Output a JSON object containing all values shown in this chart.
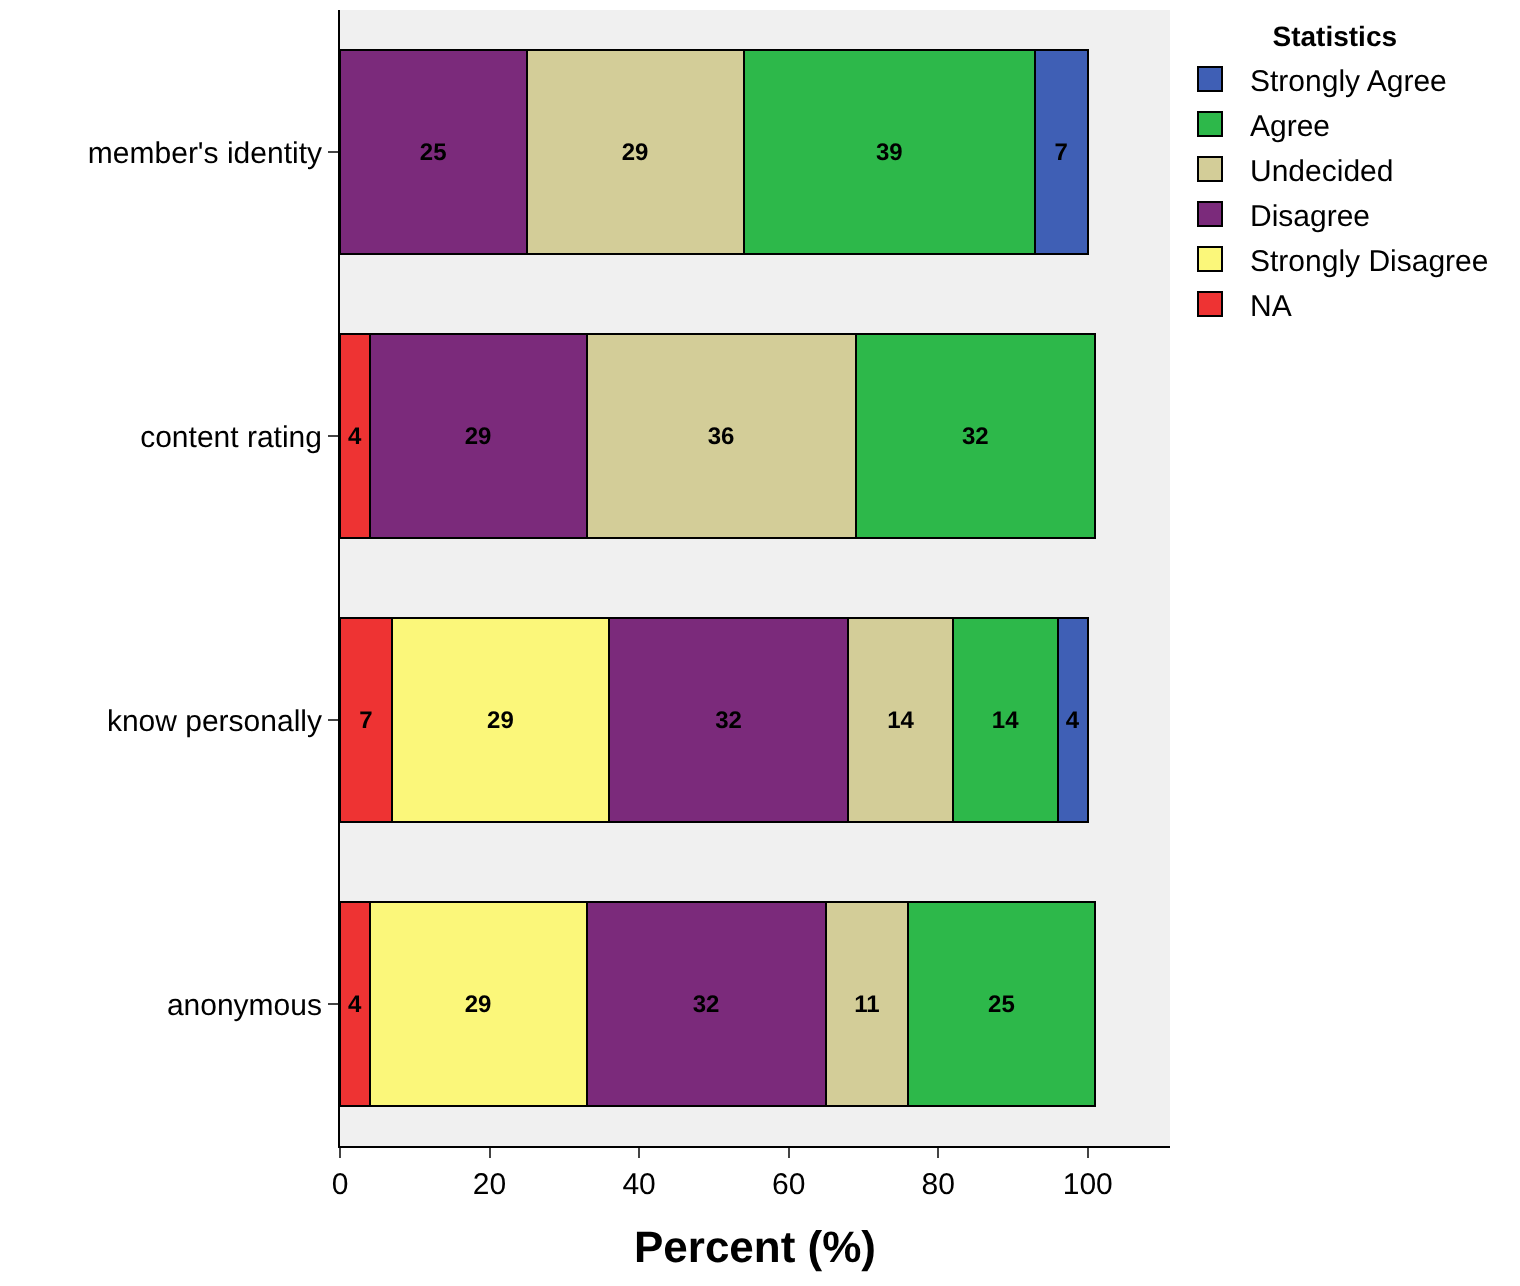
{
  "chart_data": {
    "type": "bar",
    "orientation": "horizontal",
    "stacked": true,
    "data_labels": true,
    "categories": [
      "member's identity",
      "content rating",
      "know personally",
      "anonymous"
    ],
    "series": [
      {
        "name": "NA",
        "color": "#ee3333",
        "values": [
          null,
          4,
          7,
          4
        ]
      },
      {
        "name": "Strongly Disagree",
        "color": "#fbf77a",
        "values": [
          null,
          null,
          29,
          29
        ]
      },
      {
        "name": "Disagree",
        "color": "#7b2a7b",
        "values": [
          25,
          29,
          32,
          32
        ]
      },
      {
        "name": "Undecided",
        "color": "#d3cd98",
        "values": [
          29,
          36,
          14,
          11
        ]
      },
      {
        "name": "Agree",
        "color": "#2db84a",
        "values": [
          39,
          32,
          14,
          25
        ]
      },
      {
        "name": "Strongly Agree",
        "color": "#3f5fb5",
        "values": [
          7,
          null,
          4,
          null
        ]
      }
    ],
    "xlabel": "Percent (%)",
    "legend_title": "Statistics",
    "legend": "top right",
    "xlim": [
      0,
      111
    ],
    "xticks": [
      0,
      20,
      40,
      60,
      80,
      100
    ],
    "grid": false
  }
}
